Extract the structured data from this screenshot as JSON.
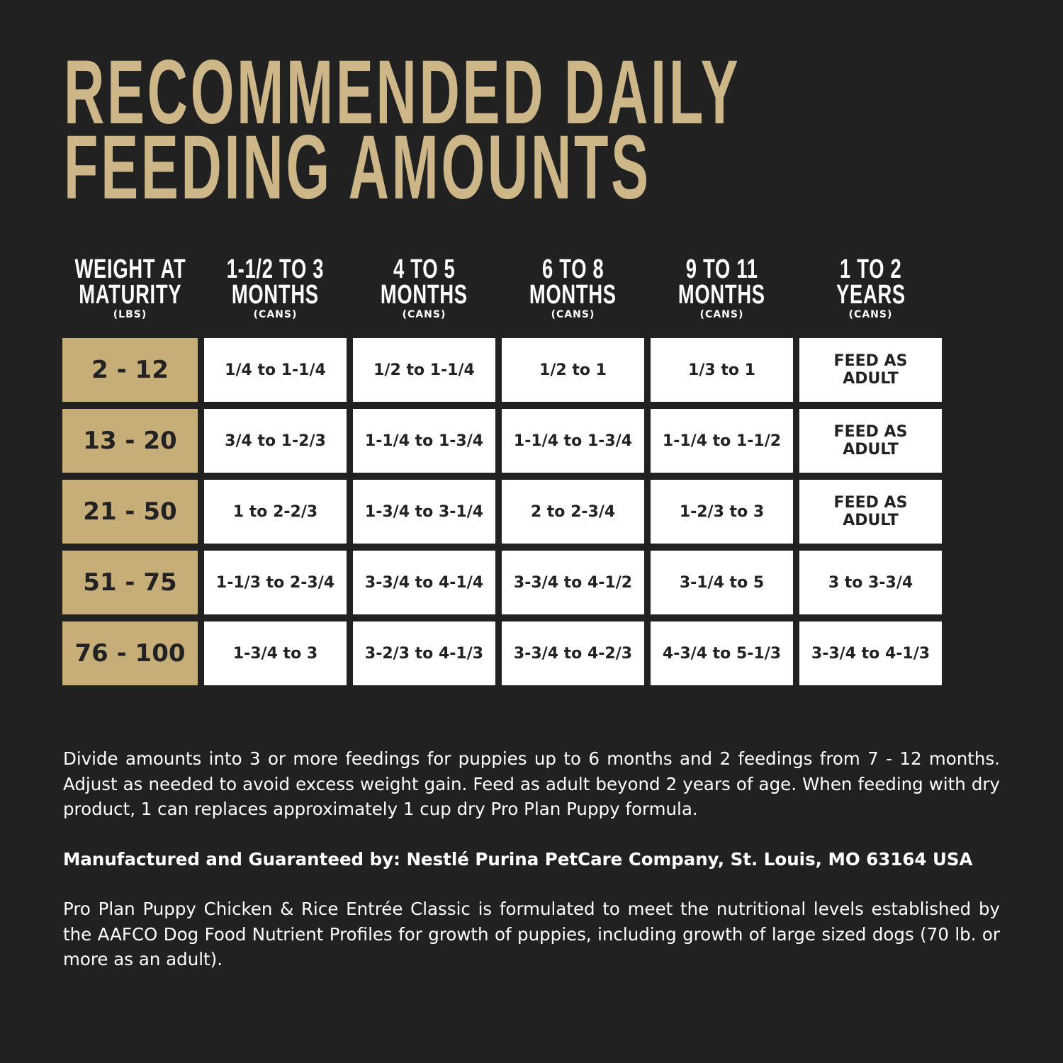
{
  "title": {
    "lines": [
      "RECOMMENDED DAILY",
      "FEEDING AMOUNTS"
    ]
  },
  "table": {
    "headers": [
      {
        "lines": [
          "WEIGHT AT",
          "MATURITY"
        ],
        "unit": "(LBS)"
      },
      {
        "lines": [
          "1-1/2 TO 3",
          "MONTHS"
        ],
        "unit": "(CANS)"
      },
      {
        "lines": [
          "4 TO 5",
          "MONTHS"
        ],
        "unit": "(CANS)"
      },
      {
        "lines": [
          "6 TO 8",
          "MONTHS"
        ],
        "unit": "(CANS)"
      },
      {
        "lines": [
          "9 TO 11",
          "MONTHS"
        ],
        "unit": "(CANS)"
      },
      {
        "lines": [
          "1 TO 2",
          "YEARS"
        ],
        "unit": "(CANS)"
      }
    ],
    "rows": [
      [
        "2 - 12",
        "1/4 to 1-1/4",
        "1/2 to 1-1/4",
        "1/2 to 1",
        "1/3 to 1",
        [
          "FEED AS",
          "ADULT"
        ]
      ],
      [
        "13 - 20",
        "3/4 to 1-2/3",
        "1-1/4 to 1-3/4",
        "1-1/4 to 1-3/4",
        "1-1/4 to 1-1/2",
        [
          "FEED AS",
          "ADULT"
        ]
      ],
      [
        "21 - 50",
        "1 to 2-2/3",
        "1-3/4 to 3-1/4",
        "2 to 2-3/4",
        "1-2/3 to 3",
        [
          "FEED AS",
          "ADULT"
        ]
      ],
      [
        "51 - 75",
        "1-1/3 to 2-3/4",
        "3-3/4 to 4-1/4",
        "3-3/4 to 4-1/2",
        "3-1/4 to 5",
        "3 to 3-3/4"
      ],
      [
        "76 - 100",
        "1-3/4 to 3",
        "3-2/3 to 4-1/3",
        "3-3/4 to 4-2/3",
        "4-3/4 to 5-1/3",
        "3-3/4 to 4-1/3"
      ]
    ]
  },
  "notes": {
    "feeding": "Divide amounts into 3 or more feedings for puppies up to 6 months and 2 feedings from 7 - 12 months. Adjust as needed to avoid excess weight gain. Feed as adult beyond 2 years of age. When feeding with dry product, 1 can replaces approximately 1 cup dry Pro Plan Puppy formula.",
    "manufacturer": "Manufactured and Guaranteed by: Nestlé Purina PetCare Company, St. Louis, MO 63164 USA",
    "aafco": "Pro Plan Puppy Chicken & Rice Entrée Classic is formulated to meet the nutritional levels established by the AAFCO Dog Food Nutrient Profiles for growth of puppies, including growth of large sized dogs (70 lb. or more as an adult)."
  }
}
